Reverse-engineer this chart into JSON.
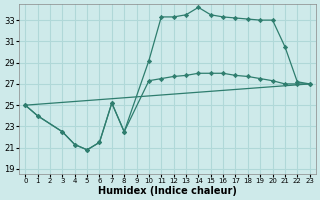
{
  "title": "",
  "xlabel": "Humidex (Indice chaleur)",
  "ylabel": "",
  "bg_color": "#ceeaea",
  "grid_color": "#b0d8d8",
  "line_color": "#2e7d6e",
  "xlim": [
    -0.5,
    23.5
  ],
  "ylim": [
    18.5,
    34.5
  ],
  "xticks": [
    0,
    1,
    2,
    3,
    4,
    5,
    6,
    7,
    8,
    9,
    10,
    11,
    12,
    13,
    14,
    15,
    16,
    17,
    18,
    19,
    20,
    21,
    22,
    23
  ],
  "yticks": [
    19,
    21,
    23,
    25,
    27,
    29,
    31,
    33
  ],
  "line1": {
    "x": [
      0,
      1,
      3,
      4,
      5,
      6,
      7,
      8,
      10,
      11,
      12,
      13,
      14,
      15,
      16,
      17,
      18,
      19,
      20,
      21,
      22,
      23
    ],
    "y": [
      25,
      24,
      22.5,
      21.3,
      20.8,
      21.5,
      25.2,
      22.5,
      29.2,
      33.3,
      33.3,
      33.5,
      34.2,
      33.5,
      33.3,
      33.2,
      33.1,
      33.0,
      33.0,
      30.5,
      27.2,
      27.0
    ]
  },
  "line2": {
    "x": [
      0,
      1,
      3,
      4,
      5,
      6,
      7,
      8,
      10,
      11,
      12,
      13,
      14,
      15,
      16,
      17,
      18,
      19,
      20,
      21,
      22,
      23
    ],
    "y": [
      25,
      24,
      22.5,
      21.3,
      20.8,
      21.5,
      25.2,
      22.5,
      27.3,
      27.5,
      27.7,
      27.8,
      28.0,
      28.0,
      28.0,
      27.8,
      27.7,
      27.5,
      27.3,
      27.0,
      27.0,
      27.0
    ]
  },
  "line3": {
    "x": [
      0,
      23
    ],
    "y": [
      25,
      27
    ]
  }
}
